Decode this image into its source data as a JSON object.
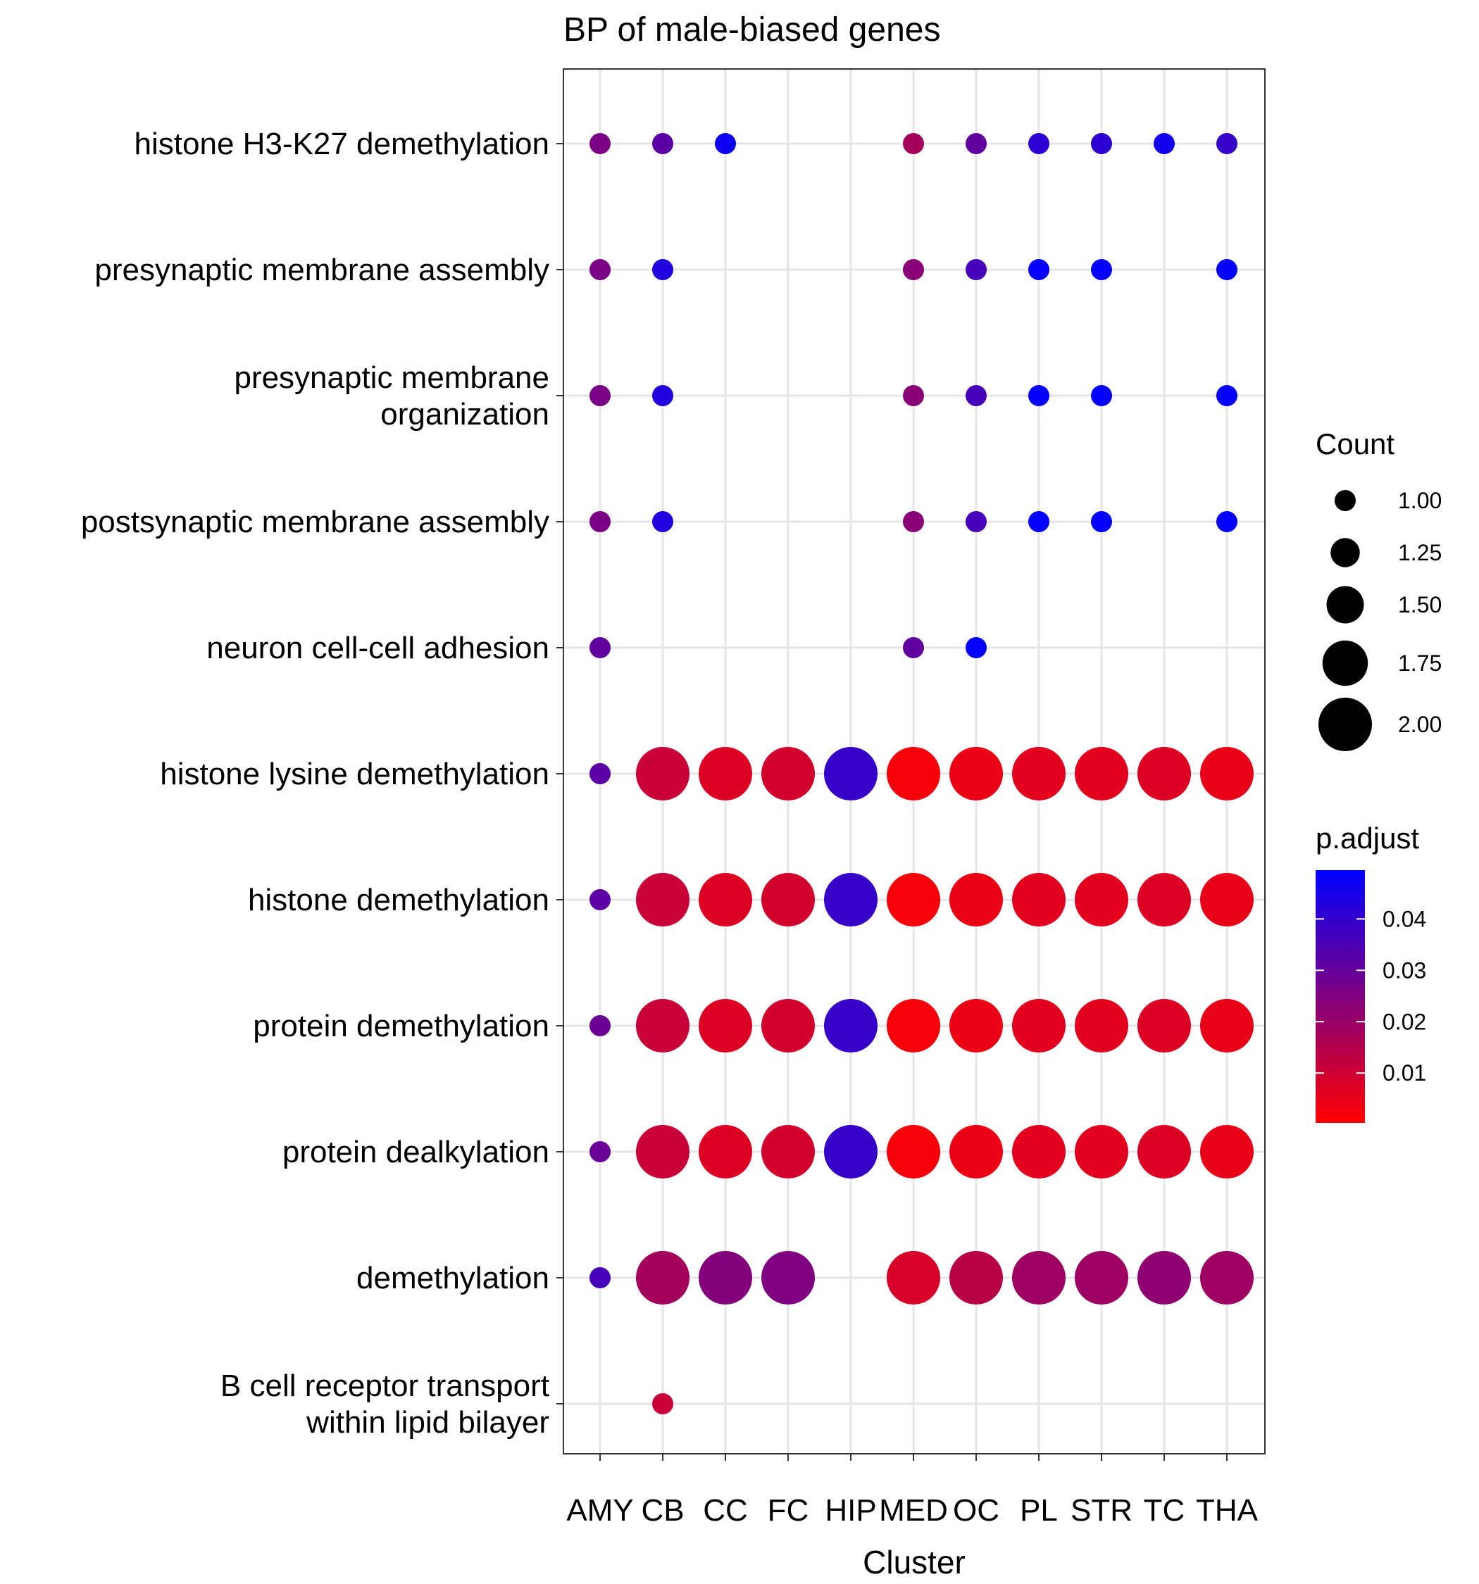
{
  "chart_data": {
    "type": "dot",
    "title": "BP of male-biased genes",
    "xlabel": "Cluster",
    "ylabel": "",
    "clusters": [
      "AMY",
      "CB",
      "CC",
      "FC",
      "HIP",
      "MED",
      "OC",
      "PL",
      "STR",
      "TC",
      "THA"
    ],
    "terms": [
      "histone H3-K27 demethylation",
      "presynaptic membrane assembly",
      "presynaptic membrane\norganization",
      "postsynaptic membrane assembly",
      "neuron cell-cell adhesion",
      "histone lysine demethylation",
      "histone demethylation",
      "protein demethylation",
      "protein dealkylation",
      "demethylation",
      "B cell receptor transport\nwithin lipid bilayer"
    ],
    "size_legend": {
      "title": "Count",
      "values": [
        1.0,
        1.25,
        1.5,
        1.75,
        2.0
      ],
      "labels": [
        "1.00",
        "1.25",
        "1.50",
        "1.75",
        "2.00"
      ]
    },
    "color_legend": {
      "title": "p.adjust",
      "range": [
        0.0003,
        0.0495
      ],
      "ticks": [
        0.01,
        0.02,
        0.03,
        0.04
      ],
      "tick_labels": [
        "0.01",
        "0.02",
        "0.03",
        "0.04"
      ],
      "low_color": "#ff0000",
      "high_color": "#0000ff"
    },
    "points": [
      {
        "term": "histone H3-K27 demethylation",
        "cluster": "AMY",
        "count": 1,
        "p_adjust": 0.026
      },
      {
        "term": "histone H3-K27 demethylation",
        "cluster": "CB",
        "count": 1,
        "p_adjust": 0.032
      },
      {
        "term": "histone H3-K27 demethylation",
        "cluster": "CC",
        "count": 1,
        "p_adjust": 0.047
      },
      {
        "term": "histone H3-K27 demethylation",
        "cluster": "MED",
        "count": 1,
        "p_adjust": 0.018
      },
      {
        "term": "histone H3-K27 demethylation",
        "cluster": "OC",
        "count": 1,
        "p_adjust": 0.031
      },
      {
        "term": "histone H3-K27 demethylation",
        "cluster": "PL",
        "count": 1,
        "p_adjust": 0.041
      },
      {
        "term": "histone H3-K27 demethylation",
        "cluster": "STR",
        "count": 1,
        "p_adjust": 0.041
      },
      {
        "term": "histone H3-K27 demethylation",
        "cluster": "TC",
        "count": 1,
        "p_adjust": 0.046
      },
      {
        "term": "histone H3-K27 demethylation",
        "cluster": "THA",
        "count": 1,
        "p_adjust": 0.039
      },
      {
        "term": "presynaptic membrane assembly",
        "cluster": "AMY",
        "count": 1,
        "p_adjust": 0.026
      },
      {
        "term": "presynaptic membrane assembly",
        "cluster": "CB",
        "count": 1,
        "p_adjust": 0.043
      },
      {
        "term": "presynaptic membrane assembly",
        "cluster": "MED",
        "count": 1,
        "p_adjust": 0.023
      },
      {
        "term": "presynaptic membrane assembly",
        "cluster": "OC",
        "count": 1,
        "p_adjust": 0.036
      },
      {
        "term": "presynaptic membrane assembly",
        "cluster": "PL",
        "count": 1,
        "p_adjust": 0.049
      },
      {
        "term": "presynaptic membrane assembly",
        "cluster": "STR",
        "count": 1,
        "p_adjust": 0.049
      },
      {
        "term": "presynaptic membrane assembly",
        "cluster": "THA",
        "count": 1,
        "p_adjust": 0.049
      },
      {
        "term": "presynaptic membrane\norganization",
        "cluster": "AMY",
        "count": 1,
        "p_adjust": 0.026
      },
      {
        "term": "presynaptic membrane\norganization",
        "cluster": "CB",
        "count": 1,
        "p_adjust": 0.043
      },
      {
        "term": "presynaptic membrane\norganization",
        "cluster": "MED",
        "count": 1,
        "p_adjust": 0.023
      },
      {
        "term": "presynaptic membrane\norganization",
        "cluster": "OC",
        "count": 1,
        "p_adjust": 0.036
      },
      {
        "term": "presynaptic membrane\norganization",
        "cluster": "PL",
        "count": 1,
        "p_adjust": 0.049
      },
      {
        "term": "presynaptic membrane\norganization",
        "cluster": "STR",
        "count": 1,
        "p_adjust": 0.049
      },
      {
        "term": "presynaptic membrane\norganization",
        "cluster": "THA",
        "count": 1,
        "p_adjust": 0.049
      },
      {
        "term": "postsynaptic membrane assembly",
        "cluster": "AMY",
        "count": 1,
        "p_adjust": 0.026
      },
      {
        "term": "postsynaptic membrane assembly",
        "cluster": "CB",
        "count": 1,
        "p_adjust": 0.043
      },
      {
        "term": "postsynaptic membrane assembly",
        "cluster": "MED",
        "count": 1,
        "p_adjust": 0.023
      },
      {
        "term": "postsynaptic membrane assembly",
        "cluster": "OC",
        "count": 1,
        "p_adjust": 0.036
      },
      {
        "term": "postsynaptic membrane assembly",
        "cluster": "PL",
        "count": 1,
        "p_adjust": 0.049
      },
      {
        "term": "postsynaptic membrane assembly",
        "cluster": "STR",
        "count": 1,
        "p_adjust": 0.049
      },
      {
        "term": "postsynaptic membrane assembly",
        "cluster": "THA",
        "count": 1,
        "p_adjust": 0.049
      },
      {
        "term": "neuron cell-cell adhesion",
        "cluster": "AMY",
        "count": 1,
        "p_adjust": 0.031
      },
      {
        "term": "neuron cell-cell adhesion",
        "cluster": "MED",
        "count": 1,
        "p_adjust": 0.031
      },
      {
        "term": "neuron cell-cell adhesion",
        "cluster": "OC",
        "count": 1,
        "p_adjust": 0.049
      },
      {
        "term": "histone lysine demethylation",
        "cluster": "AMY",
        "count": 1,
        "p_adjust": 0.032
      },
      {
        "term": "histone lysine demethylation",
        "cluster": "CB",
        "count": 2,
        "p_adjust": 0.011
      },
      {
        "term": "histone lysine demethylation",
        "cluster": "CC",
        "count": 2,
        "p_adjust": 0.007
      },
      {
        "term": "histone lysine demethylation",
        "cluster": "FC",
        "count": 2,
        "p_adjust": 0.009
      },
      {
        "term": "histone lysine demethylation",
        "cluster": "HIP",
        "count": 2,
        "p_adjust": 0.039
      },
      {
        "term": "histone lysine demethylation",
        "cluster": "MED",
        "count": 2,
        "p_adjust": 0.002
      },
      {
        "term": "histone lysine demethylation",
        "cluster": "OC",
        "count": 2,
        "p_adjust": 0.004
      },
      {
        "term": "histone lysine demethylation",
        "cluster": "PL",
        "count": 2,
        "p_adjust": 0.006
      },
      {
        "term": "histone lysine demethylation",
        "cluster": "STR",
        "count": 2,
        "p_adjust": 0.006
      },
      {
        "term": "histone lysine demethylation",
        "cluster": "TC",
        "count": 2,
        "p_adjust": 0.007
      },
      {
        "term": "histone lysine demethylation",
        "cluster": "THA",
        "count": 2,
        "p_adjust": 0.005
      },
      {
        "term": "histone demethylation",
        "cluster": "AMY",
        "count": 1,
        "p_adjust": 0.032
      },
      {
        "term": "histone demethylation",
        "cluster": "CB",
        "count": 2,
        "p_adjust": 0.011
      },
      {
        "term": "histone demethylation",
        "cluster": "CC",
        "count": 2,
        "p_adjust": 0.007
      },
      {
        "term": "histone demethylation",
        "cluster": "FC",
        "count": 2,
        "p_adjust": 0.009
      },
      {
        "term": "histone demethylation",
        "cluster": "HIP",
        "count": 2,
        "p_adjust": 0.039
      },
      {
        "term": "histone demethylation",
        "cluster": "MED",
        "count": 2,
        "p_adjust": 0.002
      },
      {
        "term": "histone demethylation",
        "cluster": "OC",
        "count": 2,
        "p_adjust": 0.004
      },
      {
        "term": "histone demethylation",
        "cluster": "PL",
        "count": 2,
        "p_adjust": 0.006
      },
      {
        "term": "histone demethylation",
        "cluster": "STR",
        "count": 2,
        "p_adjust": 0.006
      },
      {
        "term": "histone demethylation",
        "cluster": "TC",
        "count": 2,
        "p_adjust": 0.007
      },
      {
        "term": "histone demethylation",
        "cluster": "THA",
        "count": 2,
        "p_adjust": 0.005
      },
      {
        "term": "protein demethylation",
        "cluster": "AMY",
        "count": 1,
        "p_adjust": 0.029
      },
      {
        "term": "protein demethylation",
        "cluster": "CB",
        "count": 2,
        "p_adjust": 0.011
      },
      {
        "term": "protein demethylation",
        "cluster": "CC",
        "count": 2,
        "p_adjust": 0.007
      },
      {
        "term": "protein demethylation",
        "cluster": "FC",
        "count": 2,
        "p_adjust": 0.009
      },
      {
        "term": "protein demethylation",
        "cluster": "HIP",
        "count": 2,
        "p_adjust": 0.039
      },
      {
        "term": "protein demethylation",
        "cluster": "MED",
        "count": 2,
        "p_adjust": 0.002
      },
      {
        "term": "protein demethylation",
        "cluster": "OC",
        "count": 2,
        "p_adjust": 0.004
      },
      {
        "term": "protein demethylation",
        "cluster": "PL",
        "count": 2,
        "p_adjust": 0.006
      },
      {
        "term": "protein demethylation",
        "cluster": "STR",
        "count": 2,
        "p_adjust": 0.006
      },
      {
        "term": "protein demethylation",
        "cluster": "TC",
        "count": 2,
        "p_adjust": 0.007
      },
      {
        "term": "protein demethylation",
        "cluster": "THA",
        "count": 2,
        "p_adjust": 0.005
      },
      {
        "term": "protein dealkylation",
        "cluster": "AMY",
        "count": 1,
        "p_adjust": 0.029
      },
      {
        "term": "protein dealkylation",
        "cluster": "CB",
        "count": 2,
        "p_adjust": 0.011
      },
      {
        "term": "protein dealkylation",
        "cluster": "CC",
        "count": 2,
        "p_adjust": 0.007
      },
      {
        "term": "protein dealkylation",
        "cluster": "FC",
        "count": 2,
        "p_adjust": 0.009
      },
      {
        "term": "protein dealkylation",
        "cluster": "HIP",
        "count": 2,
        "p_adjust": 0.039
      },
      {
        "term": "protein dealkylation",
        "cluster": "MED",
        "count": 2,
        "p_adjust": 0.002
      },
      {
        "term": "protein dealkylation",
        "cluster": "OC",
        "count": 2,
        "p_adjust": 0.004
      },
      {
        "term": "protein dealkylation",
        "cluster": "PL",
        "count": 2,
        "p_adjust": 0.006
      },
      {
        "term": "protein dealkylation",
        "cluster": "STR",
        "count": 2,
        "p_adjust": 0.006
      },
      {
        "term": "protein dealkylation",
        "cluster": "TC",
        "count": 2,
        "p_adjust": 0.007
      },
      {
        "term": "protein dealkylation",
        "cluster": "THA",
        "count": 2,
        "p_adjust": 0.005
      },
      {
        "term": "demethylation",
        "cluster": "AMY",
        "count": 1,
        "p_adjust": 0.036
      },
      {
        "term": "demethylation",
        "cluster": "CB",
        "count": 2,
        "p_adjust": 0.018
      },
      {
        "term": "demethylation",
        "cluster": "CC",
        "count": 2,
        "p_adjust": 0.024
      },
      {
        "term": "demethylation",
        "cluster": "FC",
        "count": 2,
        "p_adjust": 0.025
      },
      {
        "term": "demethylation",
        "cluster": "MED",
        "count": 2,
        "p_adjust": 0.008
      },
      {
        "term": "demethylation",
        "cluster": "OC",
        "count": 2,
        "p_adjust": 0.014
      },
      {
        "term": "demethylation",
        "cluster": "PL",
        "count": 2,
        "p_adjust": 0.019
      },
      {
        "term": "demethylation",
        "cluster": "STR",
        "count": 2,
        "p_adjust": 0.019
      },
      {
        "term": "demethylation",
        "cluster": "TC",
        "count": 2,
        "p_adjust": 0.022
      },
      {
        "term": "demethylation",
        "cluster": "THA",
        "count": 2,
        "p_adjust": 0.019
      },
      {
        "term": "B cell receptor transport\nwithin lipid bilayer",
        "cluster": "CB",
        "count": 1,
        "p_adjust": 0.011
      }
    ]
  }
}
